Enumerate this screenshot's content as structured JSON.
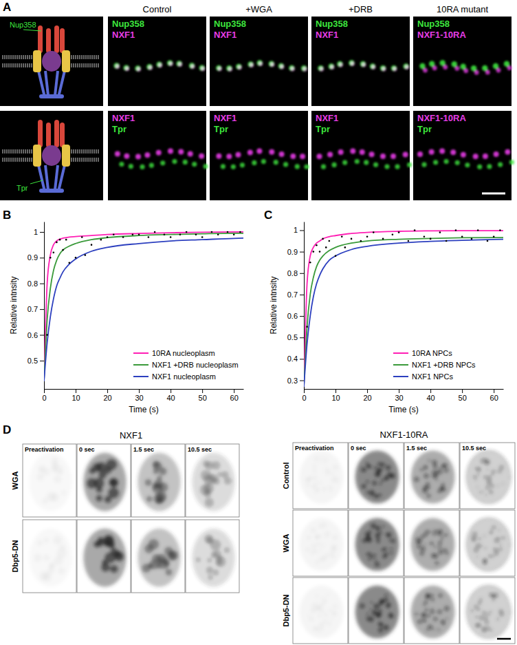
{
  "panels": [
    "A",
    "B",
    "C",
    "D"
  ],
  "panel_a": {
    "schematic_labels": [
      "Nup358",
      "Tpr"
    ],
    "columns": [
      "Control",
      "+WGA",
      "+DRB",
      "10RA mutant"
    ],
    "rows": [
      {
        "colors": [
          "#3de63d",
          "#e63ce6"
        ],
        "labels": [
          [
            "Nup358",
            "NXF1"
          ],
          [
            "Nup358",
            "NXF1"
          ],
          [
            "Nup358",
            "NXF1"
          ],
          [
            "Nup358",
            "NXF1-10RA"
          ]
        ]
      },
      {
        "colors": [
          "#e63ce6",
          "#3de63d"
        ],
        "labels": [
          [
            "NXF1",
            "Tpr"
          ],
          [
            "NXF1",
            "Tpr"
          ],
          [
            "NXF1",
            "Tpr"
          ],
          [
            "NXF1-10RA",
            "Tpr"
          ]
        ]
      }
    ]
  },
  "chart_data": [
    {
      "type": "line",
      "xlabel": "Time (s)",
      "ylabel": "Relative intnsity",
      "x": [
        0,
        1,
        2,
        3,
        4,
        5,
        6,
        8,
        10,
        15,
        20,
        30,
        40,
        50,
        60,
        63
      ],
      "xlim": [
        0,
        63
      ],
      "xticks": [
        0,
        10,
        20,
        30,
        40,
        50,
        60
      ],
      "ylim": [
        0.39,
        1.04
      ],
      "yticks": [
        0.5,
        0.6,
        0.7,
        0.8,
        0.9,
        1
      ],
      "legend": "lower right",
      "series": [
        {
          "name": "10RA nucleoplasm",
          "color": "#ff1fb4",
          "type": "line",
          "values": [
            0.42,
            0.8,
            0.91,
            0.95,
            0.965,
            0.972,
            0.976,
            0.98,
            0.982,
            0.986,
            0.99,
            0.994,
            0.997,
            0.999,
            1.0,
            1.0
          ]
        },
        {
          "name": "NXF1 +DRB nucleoplasm",
          "color": "#3a9a3a",
          "type": "line",
          "values": [
            0.42,
            0.66,
            0.78,
            0.85,
            0.89,
            0.915,
            0.93,
            0.945,
            0.955,
            0.97,
            0.978,
            0.986,
            0.99,
            0.993,
            0.995,
            0.995
          ]
        },
        {
          "name": "NXF1 nucleoplasm",
          "color": "#2c3fbf",
          "type": "line",
          "values": [
            0.42,
            0.57,
            0.67,
            0.74,
            0.79,
            0.82,
            0.845,
            0.875,
            0.895,
            0.925,
            0.94,
            0.955,
            0.965,
            0.97,
            0.975,
            0.976
          ]
        },
        {
          "color": "#000000",
          "type": "scatter",
          "x": [
            1,
            2,
            3,
            4,
            5,
            6,
            7,
            8,
            10,
            12,
            13,
            15,
            18,
            20,
            22,
            25,
            28,
            30,
            33,
            35,
            38,
            40,
            43,
            45,
            48,
            50,
            53,
            55,
            58,
            60,
            62
          ],
          "values": [
            0.6,
            0.9,
            0.92,
            0.96,
            0.97,
            0.93,
            0.97,
            0.88,
            0.9,
            0.98,
            0.91,
            0.95,
            0.97,
            0.98,
            0.99,
            0.98,
            0.99,
            0.99,
            0.98,
            1.0,
            0.99,
            0.98,
            0.99,
            1.0,
            0.99,
            0.98,
            1.0,
            0.99,
            1.0,
            0.99,
            1.0
          ]
        }
      ]
    },
    {
      "type": "line",
      "xlabel": "Time (s)",
      "ylabel": "Relative intnsity",
      "x": [
        0,
        1,
        2,
        3,
        4,
        5,
        6,
        8,
        10,
        15,
        20,
        30,
        40,
        50,
        60,
        63
      ],
      "xlim": [
        0,
        63
      ],
      "xticks": [
        0,
        10,
        20,
        30,
        40,
        50,
        60
      ],
      "ylim": [
        0.26,
        1.04
      ],
      "yticks": [
        0.3,
        0.4,
        0.5,
        0.6,
        0.7,
        0.8,
        0.9,
        1
      ],
      "legend": "lower right",
      "series": [
        {
          "name": "10RA NPCs",
          "color": "#ff1fb4",
          "type": "line",
          "values": [
            0.27,
            0.75,
            0.88,
            0.92,
            0.94,
            0.95,
            0.96,
            0.97,
            0.975,
            0.985,
            0.99,
            0.995,
            0.997,
            0.998,
            0.998,
            0.998
          ]
        },
        {
          "name": "NXF1 +DRB NPCs",
          "color": "#3a9a3a",
          "type": "line",
          "values": [
            0.27,
            0.55,
            0.7,
            0.78,
            0.83,
            0.86,
            0.88,
            0.905,
            0.92,
            0.94,
            0.95,
            0.958,
            0.962,
            0.965,
            0.966,
            0.966
          ]
        },
        {
          "name": "NXF1 NPCs",
          "color": "#2c3fbf",
          "type": "line",
          "values": [
            0.27,
            0.47,
            0.6,
            0.69,
            0.75,
            0.79,
            0.82,
            0.86,
            0.88,
            0.91,
            0.925,
            0.94,
            0.948,
            0.953,
            0.957,
            0.958
          ]
        },
        {
          "color": "#000000",
          "type": "scatter",
          "x": [
            1,
            2,
            3,
            4,
            5,
            6,
            7,
            8,
            10,
            12,
            13,
            15,
            18,
            20,
            22,
            25,
            28,
            30,
            33,
            35,
            38,
            40,
            43,
            45,
            48,
            50,
            53,
            55,
            58,
            60,
            62
          ],
          "values": [
            0.55,
            0.85,
            0.9,
            0.93,
            0.9,
            0.96,
            0.92,
            0.95,
            0.88,
            0.97,
            0.92,
            0.96,
            0.95,
            0.97,
            0.99,
            0.96,
            0.98,
            0.99,
            0.95,
            1.0,
            0.97,
            0.96,
            0.99,
            0.95,
            1.0,
            0.97,
            0.96,
            1.0,
            0.95,
            0.97,
            1.0
          ]
        }
      ]
    }
  ],
  "panel_d": {
    "columns": [
      "Preactivation",
      "0 sec",
      "1.5 sec",
      "10.5 sec"
    ],
    "groups": [
      {
        "title": "NXF1",
        "rows": [
          "WGA",
          "Dbp5-DN"
        ]
      },
      {
        "title": "NXF1-10RA",
        "rows": [
          "Control",
          "WGA",
          "Dbp5-DN"
        ]
      }
    ]
  }
}
